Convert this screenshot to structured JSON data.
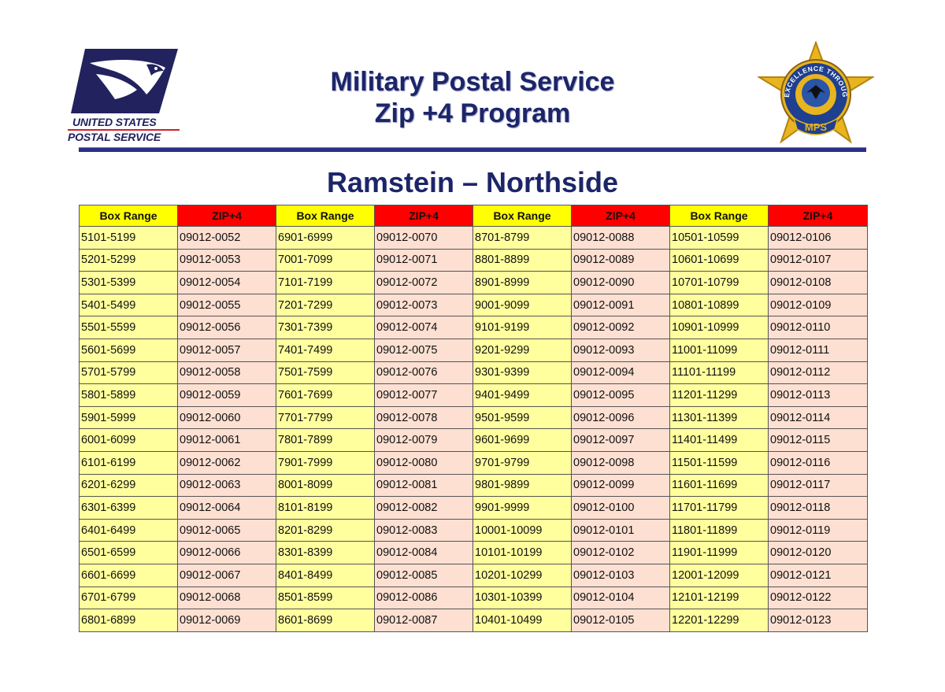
{
  "header": {
    "usps_logo": {
      "line1": "UNITED STATES",
      "line2": "POSTAL SERVICE",
      "icon": "eagle-icon"
    },
    "title_line1": "Military Postal Service",
    "title_line2": "Zip +4 Program",
    "mps_seal": {
      "ring_text": "EXCELLENCE THROUGHOUT DoD",
      "label": "MPS",
      "icon": "star-seal-icon"
    },
    "colors": {
      "navy": "#1d2569",
      "rule": "#2b2f86",
      "usps_red": "#d21f2b"
    }
  },
  "subtitle": "Ramstein – Northside",
  "table": {
    "headers": [
      "Box Range",
      "ZIP+4",
      "Box Range",
      "ZIP+4",
      "Box Range",
      "ZIP+4",
      "Box Range",
      "ZIP+4"
    ],
    "header_colors": {
      "box": "#ffff00",
      "zip": "#ff0000"
    },
    "cell_colors": {
      "box": "#ffff9e",
      "zip": "#fde0d2"
    },
    "rows": [
      [
        "5101-5199",
        "09012-0052",
        "6901-6999",
        "09012-0070",
        "8701-8799",
        "09012-0088",
        "10501-10599",
        "09012-0106"
      ],
      [
        "5201-5299",
        "09012-0053",
        "7001-7099",
        "09012-0071",
        "8801-8899",
        "09012-0089",
        "10601-10699",
        "09012-0107"
      ],
      [
        "5301-5399",
        "09012-0054",
        "7101-7199",
        "09012-0072",
        "8901-8999",
        "09012-0090",
        "10701-10799",
        "09012-0108"
      ],
      [
        "5401-5499",
        "09012-0055",
        "7201-7299",
        "09012-0073",
        "9001-9099",
        "09012-0091",
        "10801-10899",
        "09012-0109"
      ],
      [
        "5501-5599",
        "09012-0056",
        "7301-7399",
        "09012-0074",
        "9101-9199",
        "09012-0092",
        "10901-10999",
        "09012-0110"
      ],
      [
        "5601-5699",
        "09012-0057",
        "7401-7499",
        "09012-0075",
        "9201-9299",
        "09012-0093",
        "11001-11099",
        "09012-0111"
      ],
      [
        "5701-5799",
        "09012-0058",
        "7501-7599",
        "09012-0076",
        "9301-9399",
        "09012-0094",
        "11101-11199",
        "09012-0112"
      ],
      [
        "5801-5899",
        "09012-0059",
        "7601-7699",
        "09012-0077",
        "9401-9499",
        "09012-0095",
        "11201-11299",
        "09012-0113"
      ],
      [
        "5901-5999",
        "09012-0060",
        "7701-7799",
        "09012-0078",
        "9501-9599",
        "09012-0096",
        "11301-11399",
        "09012-0114"
      ],
      [
        "6001-6099",
        "09012-0061",
        "7801-7899",
        "09012-0079",
        "9601-9699",
        "09012-0097",
        "11401-11499",
        "09012-0115"
      ],
      [
        "6101-6199",
        "09012-0062",
        "7901-7999",
        "09012-0080",
        "9701-9799",
        "09012-0098",
        "11501-11599",
        "09012-0116"
      ],
      [
        "6201-6299",
        "09012-0063",
        "8001-8099",
        "09012-0081",
        "9801-9899",
        "09012-0099",
        "11601-11699",
        "09012-0117"
      ],
      [
        "6301-6399",
        "09012-0064",
        "8101-8199",
        "09012-0082",
        "9901-9999",
        "09012-0100",
        "11701-11799",
        "09012-0118"
      ],
      [
        "6401-6499",
        "09012-0065",
        "8201-8299",
        "09012-0083",
        "10001-10099",
        "09012-0101",
        "11801-11899",
        "09012-0119"
      ],
      [
        "6501-6599",
        "09012-0066",
        "8301-8399",
        "09012-0084",
        "10101-10199",
        "09012-0102",
        "11901-11999",
        "09012-0120"
      ],
      [
        "6601-6699",
        "09012-0067",
        "8401-8499",
        "09012-0085",
        "10201-10299",
        "09012-0103",
        "12001-12099",
        "09012-0121"
      ],
      [
        "6701-6799",
        "09012-0068",
        "8501-8599",
        "09012-0086",
        "10301-10399",
        "09012-0104",
        "12101-12199",
        "09012-0122"
      ],
      [
        "6801-6899",
        "09012-0069",
        "8601-8699",
        "09012-0087",
        "10401-10499",
        "09012-0105",
        "12201-12299",
        "09012-0123"
      ]
    ]
  }
}
